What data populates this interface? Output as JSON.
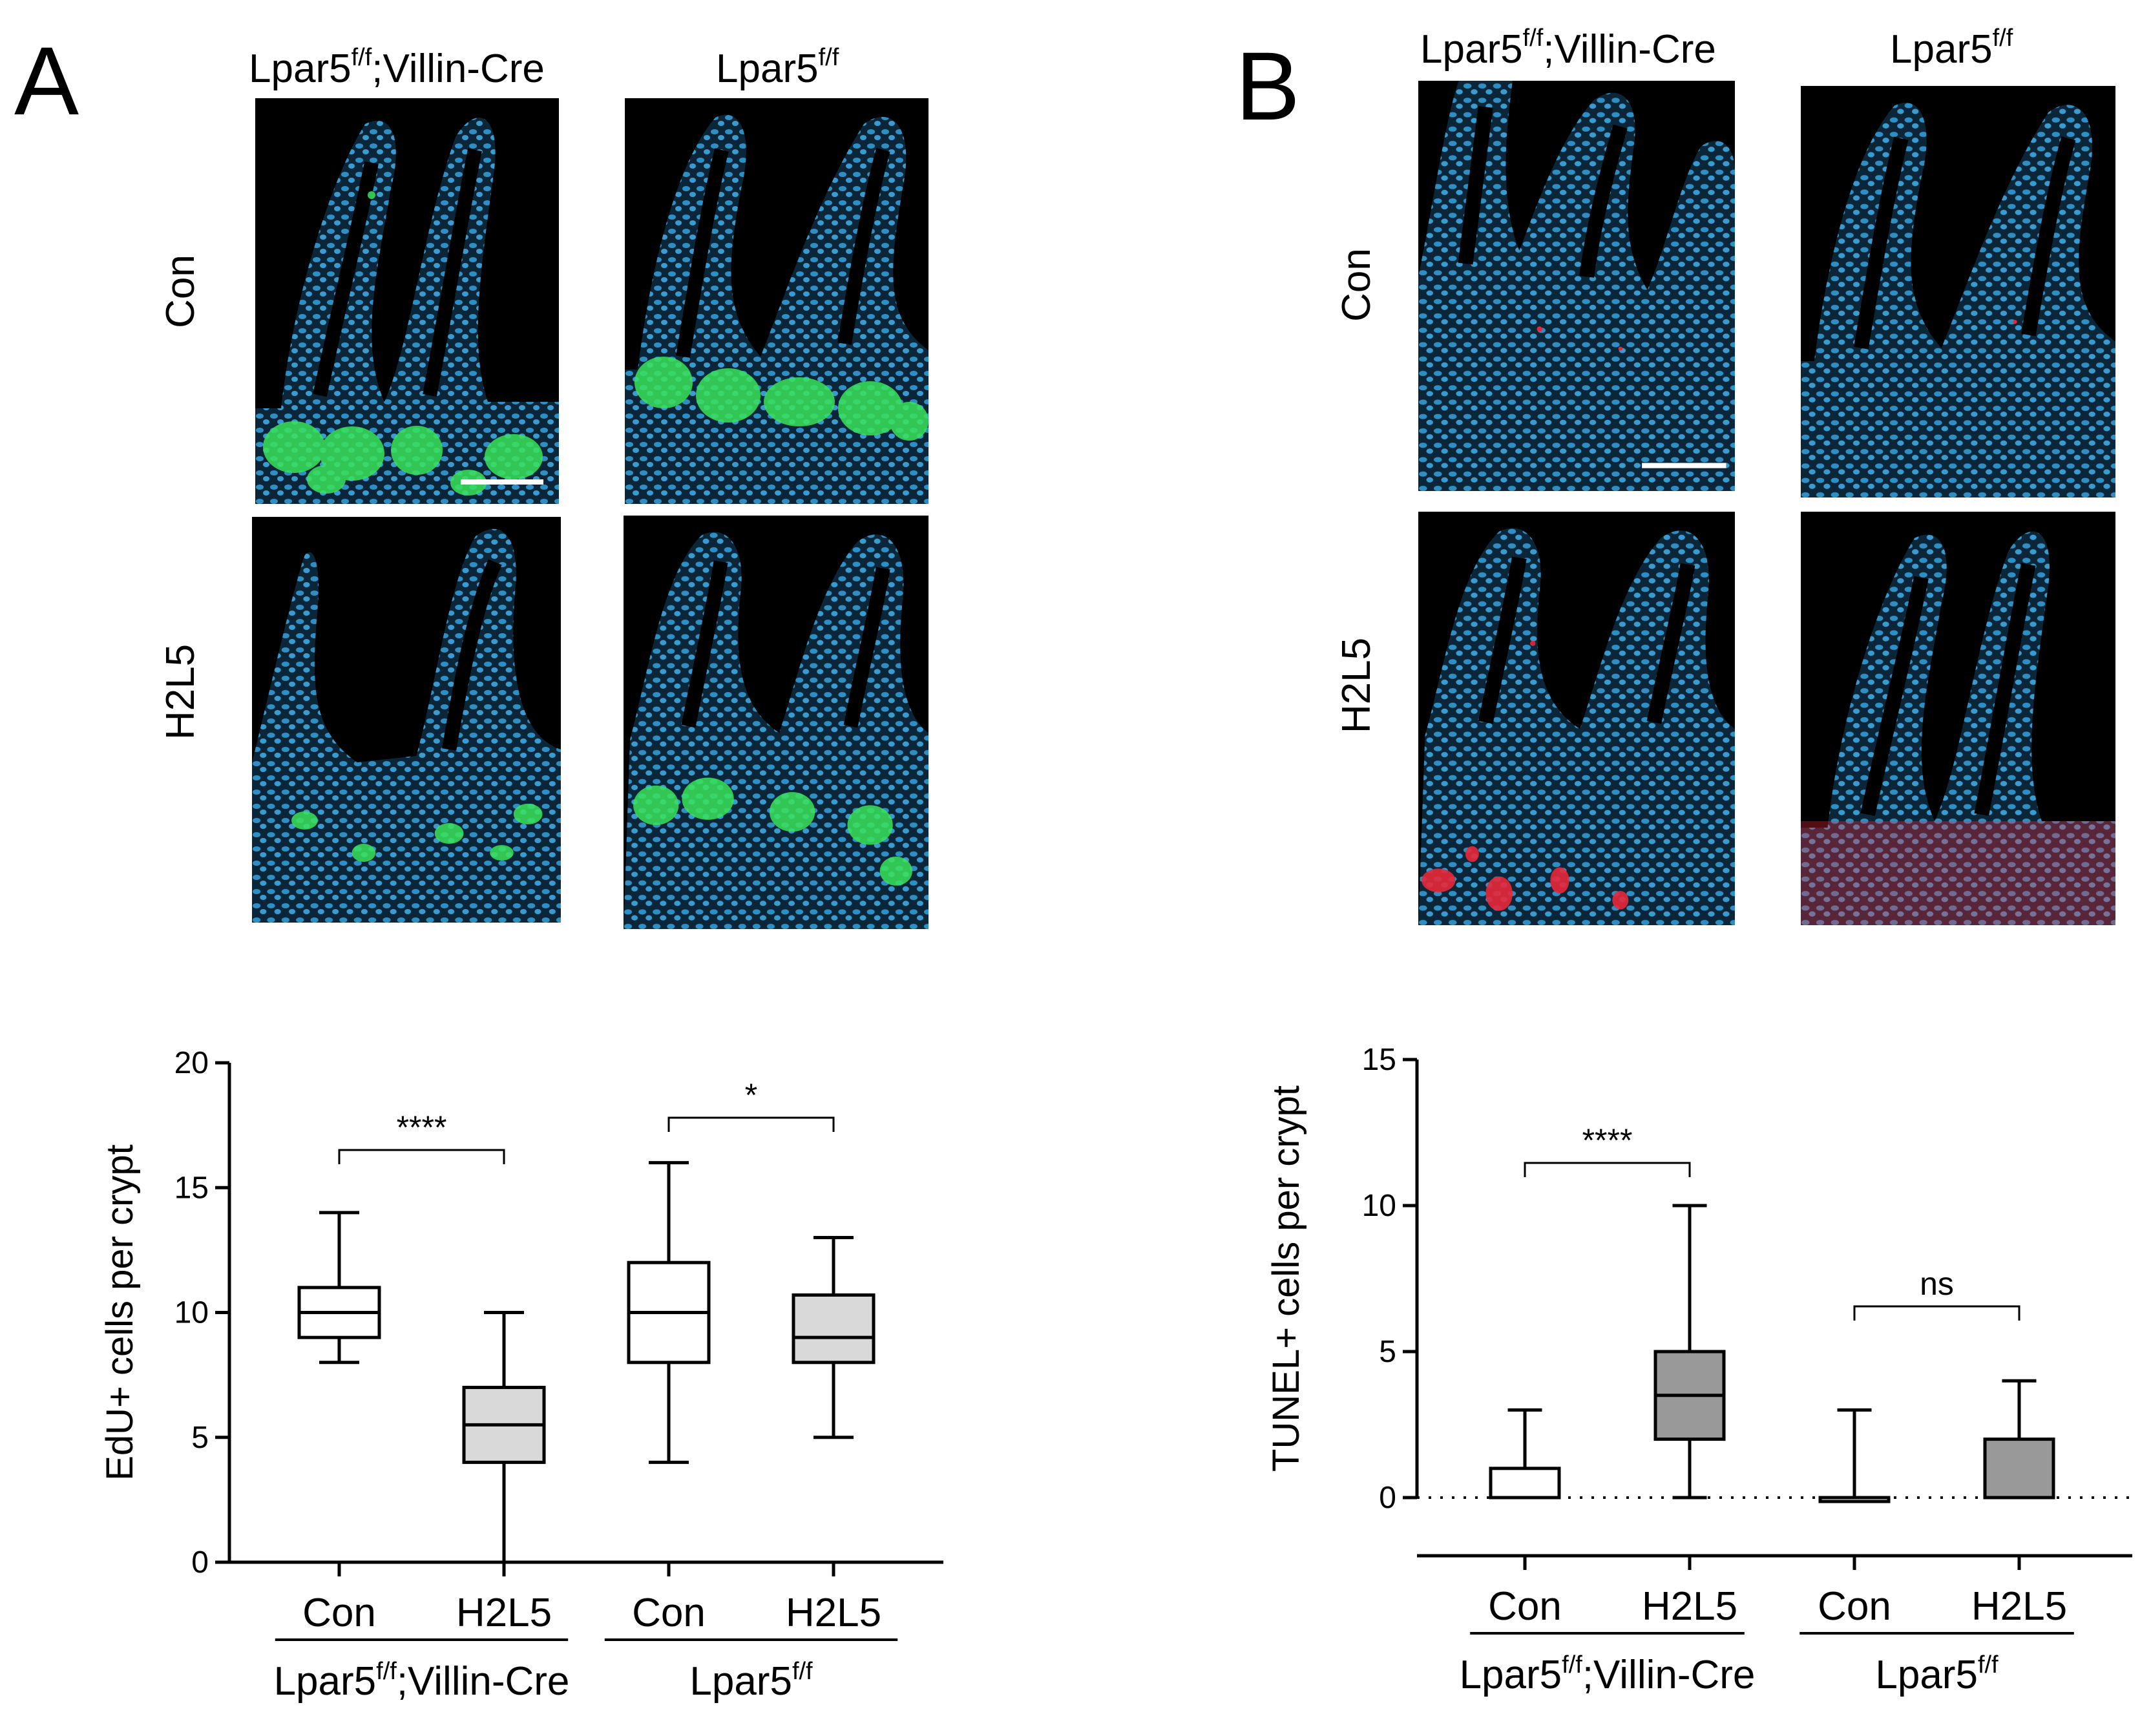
{
  "panels": {
    "A": {
      "letter": "A",
      "col_heads": [
        {
          "base": "Lpar5",
          "sup": "f/f",
          "rest": ";Villin-Cre"
        },
        {
          "base": "Lpar5",
          "sup": "f/f",
          "rest": ""
        }
      ],
      "row_labels": [
        "Con",
        "H2L5"
      ]
    },
    "B": {
      "letter": "B",
      "col_heads": [
        {
          "base": "Lpar5",
          "sup": "f/f",
          "rest": ";Villin-Cre"
        },
        {
          "base": "Lpar5",
          "sup": "f/f",
          "rest": ""
        }
      ],
      "row_labels": [
        "Con",
        "H2L5"
      ]
    }
  },
  "colors": {
    "nuclei": "#2f8fc4",
    "edu": "#39e35a",
    "tunel": "#e8283a",
    "box_con": "#ffffff",
    "box_h2l5_A": "#d9d9d9",
    "box_h2l5_B": "#999999"
  },
  "chart_data": [
    {
      "type": "box",
      "ylabel": "EdU+ cells per crypt",
      "ylim": [
        0,
        20
      ],
      "yticks": [
        0,
        5,
        10,
        15,
        20
      ],
      "categories": [
        "Con",
        "H2L5",
        "Con",
        "H2L5"
      ],
      "groups": [
        {
          "base": "Lpar5",
          "sup": "f/f",
          "rest": ";Villin-Cre"
        },
        {
          "base": "Lpar5",
          "sup": "f/f",
          "rest": ""
        }
      ],
      "boxes": [
        {
          "min": 8,
          "q1": 9,
          "median": 10,
          "q3": 11,
          "max": 14
        },
        {
          "min": 0,
          "q1": 4,
          "median": 5.5,
          "q3": 7,
          "max": 10
        },
        {
          "min": 4,
          "q1": 8,
          "median": 10,
          "q3": 12,
          "max": 16
        },
        {
          "min": 5,
          "q1": 8,
          "median": 9,
          "q3": 10.7,
          "max": 13
        }
      ],
      "significance": [
        {
          "pair": [
            0,
            1
          ],
          "label": "****"
        },
        {
          "pair": [
            2,
            3
          ],
          "label": "*"
        }
      ],
      "zero_line": false
    },
    {
      "type": "box",
      "ylabel": "TUNEL+ cells per crypt",
      "ylim": [
        -2,
        15
      ],
      "yticks": [
        0,
        5,
        10,
        15
      ],
      "categories": [
        "Con",
        "H2L5",
        "Con",
        "H2L5"
      ],
      "groups": [
        {
          "base": "Lpar5",
          "sup": "f/f",
          "rest": ";Villin-Cre"
        },
        {
          "base": "Lpar5",
          "sup": "f/f",
          "rest": ""
        }
      ],
      "boxes": [
        {
          "min": 0,
          "q1": 0,
          "median": 0,
          "q3": 1,
          "max": 3
        },
        {
          "min": 0,
          "q1": 2,
          "median": 3.5,
          "q3": 5,
          "max": 10
        },
        {
          "min": 0,
          "q1": 0,
          "median": 0,
          "q3": 0,
          "max": 3
        },
        {
          "min": 0,
          "q1": 0,
          "median": 0,
          "q3": 2,
          "max": 4
        }
      ],
      "significance": [
        {
          "pair": [
            0,
            1
          ],
          "label": "****"
        },
        {
          "pair": [
            2,
            3
          ],
          "label": "ns"
        }
      ],
      "zero_line": true
    }
  ]
}
